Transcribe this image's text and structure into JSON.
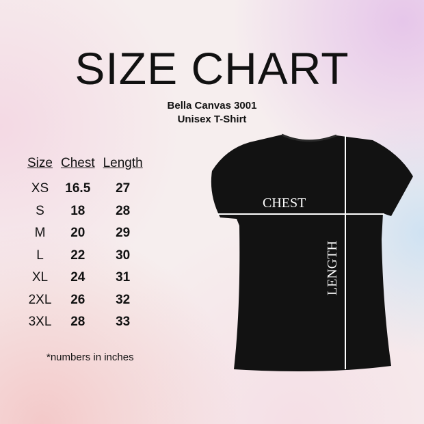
{
  "title": "SIZE CHART",
  "subtitle1": "Bella Canvas 3001",
  "subtitle2": "Unisex T-Shirt",
  "table": {
    "headers": [
      "Size",
      "Chest",
      "Length"
    ],
    "rows": [
      [
        "XS",
        "16.5",
        "27"
      ],
      [
        "S",
        "18",
        "28"
      ],
      [
        "M",
        "20",
        "29"
      ],
      [
        "L",
        "22",
        "30"
      ],
      [
        "XL",
        "24",
        "31"
      ],
      [
        "2XL",
        "26",
        "32"
      ],
      [
        "3XL",
        "28",
        "33"
      ]
    ]
  },
  "note": "*numbers in inches",
  "shirt": {
    "color": "#121212",
    "chest_label": "CHEST",
    "length_label": "LENGTH"
  }
}
